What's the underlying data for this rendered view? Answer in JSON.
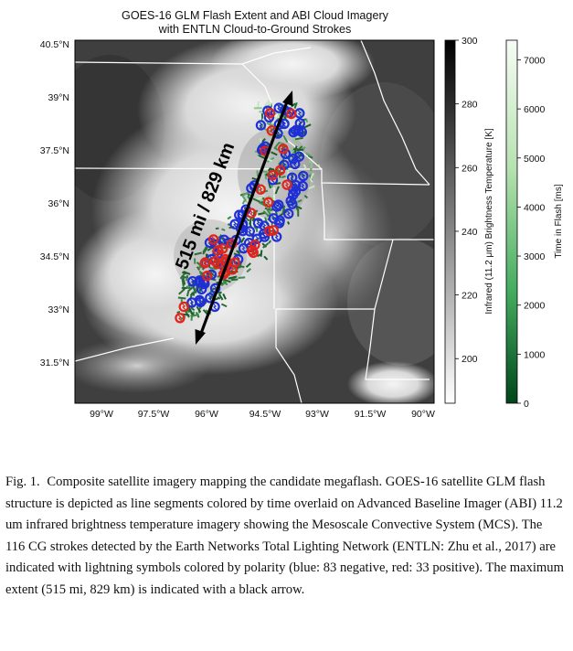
{
  "figure": {
    "title_line1": "GOES-16 GLM Flash Extent and ABI Cloud Imagery",
    "title_line2": "with ENTLN Cloud-to-Ground Strokes",
    "lat_ticks": [
      "40.5°N",
      "39°N",
      "37.5°N",
      "36°N",
      "34.5°N",
      "33°N",
      "31.5°N"
    ],
    "lon_ticks": [
      "99°W",
      "97.5°W",
      "96°W",
      "94.5°W",
      "93°W",
      "91.5°W",
      "90°W"
    ],
    "arrow_label": "515 mi / 829 km",
    "colorbar_bt": {
      "label": "Infrared (11.2 μm) Brightness Temperature [K]",
      "ticks": [
        "300",
        "280",
        "260",
        "240",
        "220",
        "200"
      ],
      "min": 186,
      "max": 300
    },
    "colorbar_time": {
      "label": "Time in Flash [ms]",
      "ticks": [
        "7000",
        "6000",
        "5000",
        "4000",
        "3000",
        "2000",
        "1000",
        "0"
      ],
      "min": 0,
      "max": 7400
    },
    "strokes": {
      "negative_count": 83,
      "positive_count": 33,
      "negative_color": "#1f2fd6",
      "positive_color": "#e0241b"
    },
    "flash_color": "#2a6e38"
  },
  "caption": {
    "lead": "Fig. 1.",
    "text": " Composite satellite imagery mapping the candidate megaflash. GOES-16 satellite GLM flash structure is depicted as line segments colored by time overlaid on Advanced Baseline Imager (ABI) 11.2 um infrared brightness temperature imagery showing the Mesoscale Convective System (MCS). The 116 CG strokes detected by the Earth Networks Total Lighting Network (ENTLN: Zhu et al., 2017) are indicated with lightning symbols colored by polarity (blue: 83 negative, red: 33 positive). The maximum extent (515 mi, 829 km) is indicated with a black arrow."
  }
}
